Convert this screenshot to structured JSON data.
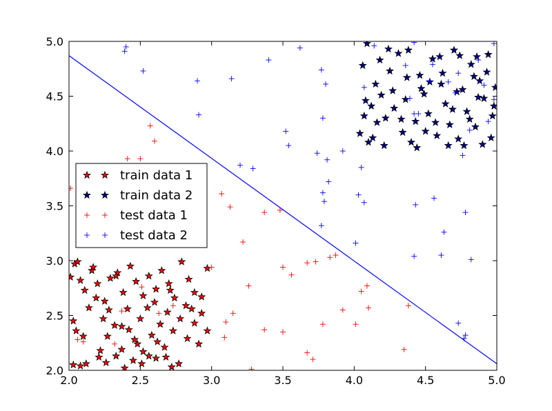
{
  "chart_data": {
    "type": "scatter",
    "title": "",
    "xlabel": "",
    "ylabel": "",
    "xlim": [
      2.0,
      5.0
    ],
    "ylim": [
      2.0,
      5.0
    ],
    "xticks": [
      "2.0",
      "2.5",
      "3.0",
      "3.5",
      "4.0",
      "4.5",
      "5.0"
    ],
    "yticks": [
      "2.0",
      "2.5",
      "3.0",
      "3.5",
      "4.0",
      "4.5",
      "5.0"
    ],
    "grid": false,
    "legend_position": "center-left",
    "decision_boundary": {
      "type": "line",
      "color": "#0000ff",
      "points": [
        [
          2.0,
          4.87
        ],
        [
          5.0,
          2.06
        ]
      ]
    },
    "series": [
      {
        "name": "train data 1",
        "marker": "star",
        "color": "#ff0000",
        "edge": "#000000",
        "points": [
          [
            2.03,
            2.05
          ],
          [
            2.08,
            2.04
          ],
          [
            2.12,
            2.06
          ],
          [
            2.21,
            2.12
          ],
          [
            2.26,
            2.07
          ],
          [
            2.33,
            2.13
          ],
          [
            2.39,
            2.02
          ],
          [
            2.45,
            2.09
          ],
          [
            2.51,
            2.06
          ],
          [
            2.56,
            2.13
          ],
          [
            2.61,
            2.11
          ],
          [
            2.68,
            2.12
          ],
          [
            2.72,
            2.03
          ],
          [
            2.77,
            2.06
          ],
          [
            2.03,
            2.45
          ],
          [
            2.05,
            2.36
          ],
          [
            2.1,
            2.31
          ],
          [
            2.14,
            2.57
          ],
          [
            2.19,
            2.66
          ],
          [
            2.24,
            2.47
          ],
          [
            2.28,
            2.55
          ],
          [
            2.32,
            2.41
          ],
          [
            2.37,
            2.4
          ],
          [
            2.42,
            2.37
          ],
          [
            2.46,
            2.28
          ],
          [
            2.5,
            2.47
          ],
          [
            2.55,
            2.57
          ],
          [
            2.6,
            2.62
          ],
          [
            2.64,
            2.42
          ],
          [
            2.69,
            2.53
          ],
          [
            2.73,
            2.36
          ],
          [
            2.78,
            2.47
          ],
          [
            2.83,
            2.29
          ],
          [
            2.88,
            2.43
          ],
          [
            2.93,
            2.52
          ],
          [
            2.97,
            2.36
          ],
          [
            2.01,
            2.85
          ],
          [
            2.04,
            2.97
          ],
          [
            2.08,
            2.82
          ],
          [
            2.11,
            2.73
          ],
          [
            2.16,
            2.91
          ],
          [
            2.2,
            2.79
          ],
          [
            2.25,
            2.63
          ],
          [
            2.29,
            2.84
          ],
          [
            2.34,
            2.89
          ],
          [
            2.38,
            2.71
          ],
          [
            2.43,
            2.95
          ],
          [
            2.47,
            2.81
          ],
          [
            2.52,
            2.68
          ],
          [
            2.56,
            2.86
          ],
          [
            2.61,
            2.74
          ],
          [
            2.65,
            2.91
          ],
          [
            2.7,
            2.79
          ],
          [
            2.74,
            2.66
          ],
          [
            2.79,
            2.99
          ],
          [
            2.84,
            2.83
          ],
          [
            2.88,
            2.71
          ],
          [
            2.93,
            2.67
          ],
          [
            2.97,
            2.93
          ],
          [
            2.06,
            2.99
          ],
          [
            2.17,
            2.94
          ],
          [
            2.33,
            2.86
          ],
          [
            2.48,
            2.24
          ],
          [
            2.58,
            2.32
          ],
          [
            2.67,
            2.21
          ],
          [
            2.82,
            2.59
          ],
          [
            2.91,
            2.24
          ],
          [
            2.22,
            2.18
          ],
          [
            2.37,
            2.19
          ],
          [
            2.52,
            2.17
          ],
          [
            2.62,
            2.26
          ],
          [
            2.71,
            2.73
          ],
          [
            2.86,
            2.56
          ],
          [
            2.41,
            2.56
          ],
          [
            2.27,
            2.31
          ]
        ]
      },
      {
        "name": "train data 2",
        "marker": "star",
        "color": "#00008b",
        "edge": "#000000",
        "points": [
          [
            4.04,
            4.16
          ],
          [
            4.07,
            4.32
          ],
          [
            4.1,
            4.08
          ],
          [
            4.12,
            4.41
          ],
          [
            4.15,
            4.61
          ],
          [
            4.19,
            4.51
          ],
          [
            4.22,
            4.3
          ],
          [
            4.25,
            4.73
          ],
          [
            4.28,
            4.39
          ],
          [
            4.31,
            4.89
          ],
          [
            4.34,
            4.17
          ],
          [
            4.37,
            4.67
          ],
          [
            4.4,
            4.08
          ],
          [
            4.43,
            4.27
          ],
          [
            4.46,
            4.69
          ],
          [
            4.49,
            4.52
          ],
          [
            4.52,
            4.34
          ],
          [
            4.55,
            4.84
          ],
          [
            4.58,
            4.14
          ],
          [
            4.61,
            4.61
          ],
          [
            4.64,
            4.43
          ],
          [
            4.67,
            4.24
          ],
          [
            4.7,
            4.92
          ],
          [
            4.73,
            4.11
          ],
          [
            4.76,
            4.56
          ],
          [
            4.79,
            4.36
          ],
          [
            4.82,
            4.79
          ],
          [
            4.85,
            4.22
          ],
          [
            4.88,
            4.64
          ],
          [
            4.91,
            4.48
          ],
          [
            4.94,
            4.88
          ],
          [
            4.97,
            4.32
          ],
          [
            4.99,
            4.58
          ],
          [
            4.06,
            4.78
          ],
          [
            4.09,
            4.98
          ],
          [
            4.13,
            4.12
          ],
          [
            4.18,
            4.83
          ],
          [
            4.21,
            4.05
          ],
          [
            4.27,
            4.55
          ],
          [
            4.33,
            4.29
          ],
          [
            4.38,
            4.92
          ],
          [
            4.44,
            4.03
          ],
          [
            4.5,
            4.18
          ],
          [
            4.53,
            4.63
          ],
          [
            4.57,
            4.26
          ],
          [
            4.62,
            4.71
          ],
          [
            4.66,
            4.05
          ],
          [
            4.69,
            4.38
          ],
          [
            4.72,
            4.54
          ],
          [
            4.77,
            4.05
          ],
          [
            4.81,
            4.29
          ],
          [
            4.84,
            4.68
          ],
          [
            4.87,
            4.49
          ],
          [
            4.9,
            4.06
          ],
          [
            4.93,
            4.72
          ],
          [
            4.96,
            4.12
          ],
          [
            4.98,
            4.41
          ],
          [
            4.08,
            4.46
          ],
          [
            4.16,
            4.26
          ],
          [
            4.24,
            4.93
          ],
          [
            4.36,
            4.47
          ],
          [
            4.47,
            4.57
          ],
          [
            4.6,
            4.86
          ],
          [
            4.74,
            4.87
          ],
          [
            4.86,
            4.86
          ]
        ]
      },
      {
        "name": "test data 1",
        "marker": "plus",
        "color": "#ff0000",
        "points": [
          [
            2.01,
            3.66
          ],
          [
            2.06,
            2.28
          ],
          [
            2.1,
            2.26
          ],
          [
            2.32,
            2.24
          ],
          [
            2.37,
            2.54
          ],
          [
            2.41,
            3.93
          ],
          [
            2.5,
            3.93
          ],
          [
            2.51,
            2.76
          ],
          [
            2.57,
            4.23
          ],
          [
            2.6,
            4.09
          ],
          [
            2.63,
            2.52
          ],
          [
            2.73,
            2.59
          ],
          [
            3.0,
            2.94
          ],
          [
            3.07,
            3.61
          ],
          [
            3.1,
            2.44
          ],
          [
            3.09,
            2.3
          ],
          [
            3.13,
            3.49
          ],
          [
            3.15,
            2.52
          ],
          [
            3.22,
            3.17
          ],
          [
            3.26,
            2.77
          ],
          [
            3.28,
            2.01
          ],
          [
            3.37,
            3.44
          ],
          [
            3.37,
            2.37
          ],
          [
            3.48,
            3.46
          ],
          [
            3.5,
            2.94
          ],
          [
            3.5,
            2.35
          ],
          [
            3.56,
            2.87
          ],
          [
            3.67,
            2.98
          ],
          [
            3.67,
            2.16
          ],
          [
            3.71,
            2.1
          ],
          [
            3.73,
            2.99
          ],
          [
            3.78,
            2.42
          ],
          [
            3.83,
            3.03
          ],
          [
            3.87,
            3.05
          ],
          [
            3.92,
            2.55
          ],
          [
            4.01,
            2.42
          ],
          [
            4.05,
            2.72
          ],
          [
            4.09,
            2.77
          ],
          [
            4.1,
            2.57
          ],
          [
            4.35,
            2.19
          ],
          [
            4.38,
            2.59
          ]
        ]
      },
      {
        "name": "test data 2",
        "marker": "plus",
        "color": "#0000ff",
        "points": [
          [
            2.39,
            4.91
          ],
          [
            2.4,
            4.95
          ],
          [
            2.52,
            4.73
          ],
          [
            2.9,
            4.64
          ],
          [
            2.91,
            4.33
          ],
          [
            3.14,
            4.66
          ],
          [
            3.2,
            3.87
          ],
          [
            3.29,
            3.84
          ],
          [
            3.4,
            4.83
          ],
          [
            3.52,
            4.18
          ],
          [
            3.54,
            4.05
          ],
          [
            3.62,
            4.94
          ],
          [
            3.74,
            3.98
          ],
          [
            3.77,
            4.74
          ],
          [
            3.77,
            3.32
          ],
          [
            3.78,
            3.62
          ],
          [
            3.78,
            4.3
          ],
          [
            3.79,
            3.54
          ],
          [
            3.8,
            4.61
          ],
          [
            3.81,
            3.92
          ],
          [
            3.82,
            3.72
          ],
          [
            3.92,
            4.0
          ],
          [
            4.01,
            3.16
          ],
          [
            4.03,
            3.6
          ],
          [
            4.05,
            3.85
          ],
          [
            4.07,
            3.53
          ],
          [
            4.07,
            4.58
          ],
          [
            4.14,
            4.96
          ],
          [
            4.36,
            4.78
          ],
          [
            4.39,
            4.48
          ],
          [
            4.42,
            4.99
          ],
          [
            4.42,
            4.34
          ],
          [
            4.43,
            3.51
          ],
          [
            4.42,
            3.04
          ],
          [
            4.45,
            4.34
          ],
          [
            4.53,
            4.64
          ],
          [
            4.55,
            4.79
          ],
          [
            4.56,
            3.57
          ],
          [
            4.61,
            3.05
          ],
          [
            4.63,
            3.26
          ],
          [
            4.66,
            4.63
          ],
          [
            4.71,
            4.53
          ],
          [
            4.73,
            4.71
          ],
          [
            4.73,
            2.43
          ],
          [
            4.76,
            3.96
          ],
          [
            4.77,
            2.29
          ],
          [
            4.78,
            3.44
          ],
          [
            4.78,
            2.32
          ],
          [
            4.81,
            4.19
          ],
          [
            4.82,
            3.01
          ],
          [
            4.87,
            4.83
          ],
          [
            4.91,
            4.6
          ],
          [
            4.94,
            4.27
          ],
          [
            4.98,
            4.47
          ],
          [
            4.98,
            4.98
          ]
        ]
      }
    ]
  }
}
